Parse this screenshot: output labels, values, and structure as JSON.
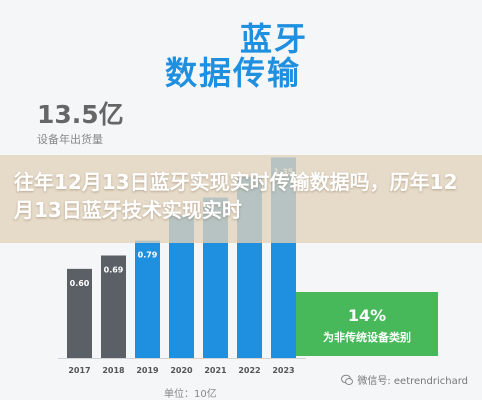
{
  "hero": {
    "line1": "蓝牙",
    "line2": "数据传输"
  },
  "summary": {
    "value": "13.5亿",
    "caption": "设备年出货量"
  },
  "headline": "往年12月13日蓝牙实现实时传输数据吗，历年12月13日蓝牙技术实现实时",
  "callout": {
    "percent": "14%",
    "text": "为非传统设备类别"
  },
  "unit_note": "单位：10亿",
  "watermark": "微信号: eetrendrichard",
  "colors": {
    "highlight": "#1f8fe0",
    "gray_bar": "#5b6067",
    "callout": "#47b95b"
  },
  "chart_data": {
    "type": "bar",
    "categories": [
      "2017",
      "2018",
      "2019",
      "2020",
      "2021",
      "2022",
      "2023"
    ],
    "values": [
      0.6,
      0.69,
      0.79,
      0.96,
      1.08,
      1.22,
      1.35
    ],
    "value_labels": [
      "0.60",
      "0.69",
      "0.79",
      "",
      "",
      "",
      "1.35"
    ],
    "highlight_from_index": 2,
    "title": "",
    "xlabel": "",
    "ylabel": "",
    "ylim": [
      0,
      1.4
    ],
    "grid": false
  }
}
